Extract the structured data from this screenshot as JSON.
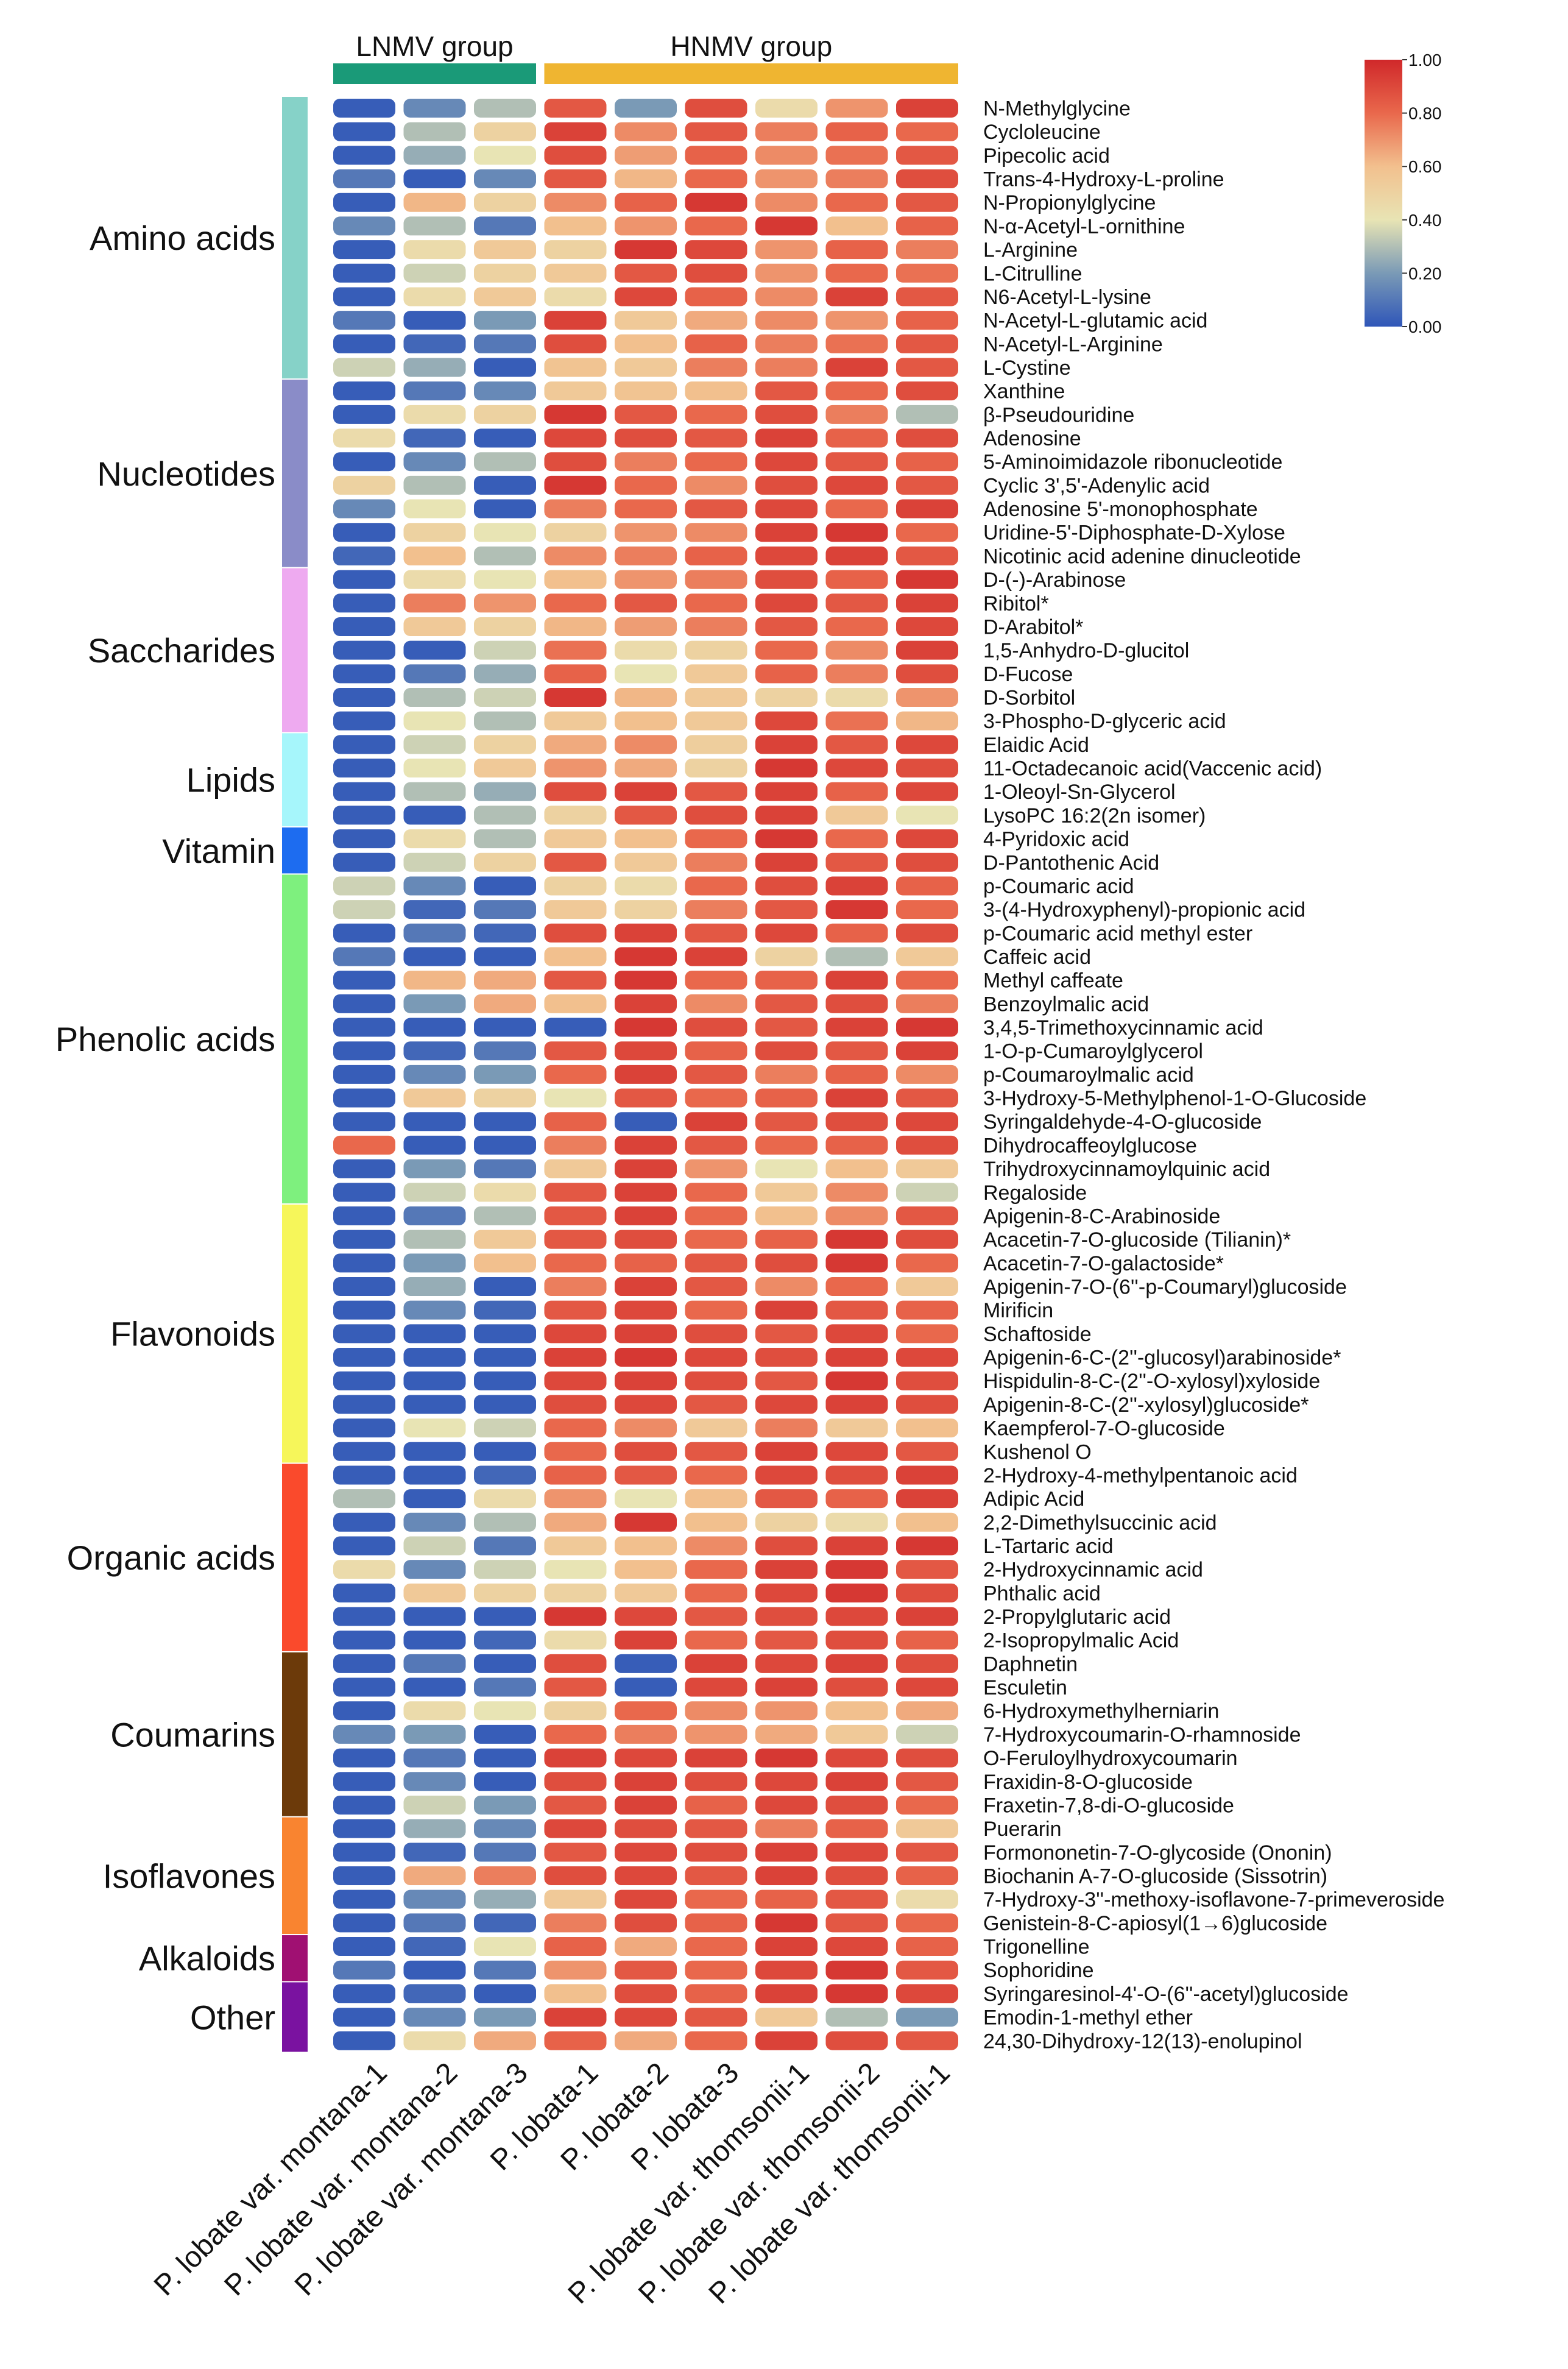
{
  "chart_data": {
    "type": "heatmap",
    "title": "",
    "column_groups": [
      {
        "name": "LNMV group",
        "color": "#1a9a78",
        "columns": 3
      },
      {
        "name": "HNMV group",
        "color": "#efb531",
        "columns": 6
      }
    ],
    "columns": [
      "P. lobate var. montana-1",
      "P. lobate var. montana-2",
      "P. lobate var. montana-3",
      "P. lobata-1",
      "P. lobata-2",
      "P. lobata-3",
      "P. lobate var. thomsonii-1",
      "P. lobate var. thomsonii-2",
      "P. lobate var. thomsonii-1"
    ],
    "row_categories": [
      {
        "name": "Amino acids",
        "color": "#86d2c8",
        "start": 0,
        "count": 12
      },
      {
        "name": "Nucleotides",
        "color": "#8a8cc8",
        "start": 12,
        "count": 8
      },
      {
        "name": "Saccharides",
        "color": "#eeaaf0",
        "start": 20,
        "count": 7
      },
      {
        "name": "Lipids",
        "color": "#a6f6fb",
        "start": 27,
        "count": 4
      },
      {
        "name": "Vitamin",
        "color": "#1d6cf0",
        "start": 31,
        "count": 2
      },
      {
        "name": "Phenolic acids",
        "color": "#7ef07e",
        "start": 33,
        "count": 14
      },
      {
        "name": "Flavonoids",
        "color": "#f6f65a",
        "start": 47,
        "count": 11
      },
      {
        "name": "Organic acids",
        "color": "#fa4a2c",
        "start": 58,
        "count": 8
      },
      {
        "name": "Coumarins",
        "color": "#6c3a0a",
        "start": 66,
        "count": 7
      },
      {
        "name": "Isoflavones",
        "color": "#f98430",
        "start": 73,
        "count": 5
      },
      {
        "name": "Alkaloids",
        "color": "#a01072",
        "start": 78,
        "count": 2
      },
      {
        "name": "Other",
        "color": "#7a12a0",
        "start": 80,
        "count": 3
      }
    ],
    "rows": [
      "N-Methylglycine",
      "Cycloleucine",
      "Pipecolic acid",
      "Trans-4-Hydroxy-L-proline",
      "N-Propionylglycine",
      "N-α-Acetyl-L-ornithine",
      "L-Arginine",
      "L-Citrulline",
      "N6-Acetyl-L-lysine",
      "N-Acetyl-L-glutamic acid",
      "N-Acetyl-L-Arginine",
      "L-Cystine",
      "Xanthine",
      "β-Pseudouridine",
      "Adenosine",
      "5-Aminoimidazole ribonucleotide",
      "Cyclic 3',5'-Adenylic acid",
      "Adenosine 5'-monophosphate",
      "Uridine-5'-Diphosphate-D-Xylose",
      "Nicotinic acid adenine dinucleotide",
      "D-(-)-Arabinose",
      "Ribitol*",
      "D-Arabitol*",
      "1,5-Anhydro-D-glucitol",
      "D-Fucose",
      "D-Sorbitol",
      "3-Phospho-D-glyceric acid",
      "Elaidic Acid",
      "11-Octadecanoic acid(Vaccenic acid)",
      "1-Oleoyl-Sn-Glycerol",
      "LysoPC 16:2(2n isomer)",
      "4-Pyridoxic acid",
      "D-Pantothenic Acid",
      "p-Coumaric acid",
      "3-(4-Hydroxyphenyl)-propionic acid",
      "p-Coumaric acid methyl ester",
      "Caffeic acid",
      "Methyl caffeate",
      "Benzoylmalic acid",
      "3,4,5-Trimethoxycinnamic acid",
      "1-O-p-Cumaroylglycerol",
      "p-Coumaroylmalic acid",
      "3-Hydroxy-5-Methylphenol-1-O-Glucoside",
      "Syringaldehyde-4-O-glucoside",
      "Dihydrocaffeoylglucose",
      "Trihydroxycinnamoylquinic acid",
      "Regaloside",
      "Apigenin-8-C-Arabinoside",
      "Acacetin-7-O-glucoside (Tilianin)*",
      "Acacetin-7-O-galactoside*",
      "Apigenin-7-O-(6''-p-Coumaryl)glucoside",
      "Mirificin",
      "Schaftoside",
      "Apigenin-6-C-(2''-glucosyl)arabinoside*",
      "Hispidulin-8-C-(2''-O-xylosyl)xyloside",
      "Apigenin-8-C-(2''-xylosyl)glucoside*",
      "Kaempferol-7-O-glucoside",
      "Kushenol O",
      "2-Hydroxy-4-methylpentanoic acid",
      "Adipic Acid",
      "2,2-Dimethylsuccinic acid",
      "L-Tartaric acid",
      "2-Hydroxycinnamic acid",
      "Phthalic acid",
      "2-Propylglutaric acid",
      "2-Isopropylmalic Acid",
      "Daphnetin",
      "Esculetin",
      "6-Hydroxymethylherniarin",
      "7-Hydroxycoumarin-O-rhamnoside",
      "O-Feruloylhydroxycoumarin",
      "Fraxidin-8-O-glucoside",
      "Fraxetin-7,8-di-O-glucoside",
      "Puerarin",
      "Formononetin-7-O-glycoside (Ononin)",
      "Biochanin A-7-O-glucoside (Sissotrin)",
      "7-Hydroxy-3''-methoxy-isoflavone-7-primeveroside",
      "Genistein-8-C-apiosyl(1→6)glucoside",
      "Trigonelline",
      "Sophoridine",
      "Syringaresinol-4'-O-(6''-acetyl)glucoside",
      "Emodin-1-methyl ether",
      "24,30-Dihydroxy-12(13)-enolupinol"
    ],
    "values": [
      [
        0.02,
        0.15,
        0.3,
        0.85,
        0.2,
        0.88,
        0.45,
        0.7,
        0.92
      ],
      [
        0.02,
        0.3,
        0.5,
        0.92,
        0.72,
        0.85,
        0.75,
        0.82,
        0.8
      ],
      [
        0.02,
        0.25,
        0.4,
        0.88,
        0.68,
        0.82,
        0.72,
        0.78,
        0.85
      ],
      [
        0.1,
        0.02,
        0.15,
        0.85,
        0.62,
        0.8,
        0.7,
        0.75,
        0.88
      ],
      [
        0.02,
        0.62,
        0.5,
        0.72,
        0.82,
        0.95,
        0.72,
        0.8,
        0.85
      ],
      [
        0.15,
        0.3,
        0.1,
        0.6,
        0.7,
        0.8,
        0.95,
        0.6,
        0.82
      ],
      [
        0.02,
        0.45,
        0.55,
        0.5,
        0.95,
        0.9,
        0.7,
        0.82,
        0.75
      ],
      [
        0.02,
        0.35,
        0.5,
        0.55,
        0.85,
        0.88,
        0.7,
        0.8,
        0.78
      ],
      [
        0.02,
        0.45,
        0.55,
        0.45,
        0.9,
        0.82,
        0.72,
        0.92,
        0.85
      ],
      [
        0.1,
        0.02,
        0.2,
        0.92,
        0.55,
        0.65,
        0.72,
        0.7,
        0.82
      ],
      [
        0.02,
        0.05,
        0.1,
        0.88,
        0.6,
        0.82,
        0.75,
        0.78,
        0.85
      ],
      [
        0.35,
        0.25,
        0.02,
        0.58,
        0.55,
        0.75,
        0.75,
        0.92,
        0.85
      ],
      [
        0.02,
        0.1,
        0.15,
        0.55,
        0.58,
        0.6,
        0.85,
        0.8,
        0.88
      ],
      [
        0.02,
        0.45,
        0.5,
        0.95,
        0.85,
        0.8,
        0.88,
        0.75,
        0.3
      ],
      [
        0.45,
        0.05,
        0.02,
        0.9,
        0.88,
        0.85,
        0.92,
        0.82,
        0.88
      ],
      [
        0.02,
        0.15,
        0.3,
        0.88,
        0.75,
        0.8,
        0.9,
        0.85,
        0.82
      ],
      [
        0.5,
        0.3,
        0.02,
        0.95,
        0.8,
        0.72,
        0.88,
        0.9,
        0.85
      ],
      [
        0.15,
        0.4,
        0.02,
        0.75,
        0.8,
        0.85,
        0.9,
        0.8,
        0.92
      ],
      [
        0.02,
        0.5,
        0.4,
        0.5,
        0.7,
        0.72,
        0.92,
        0.95,
        0.8
      ],
      [
        0.05,
        0.6,
        0.3,
        0.72,
        0.75,
        0.82,
        0.9,
        0.92,
        0.85
      ],
      [
        0.02,
        0.45,
        0.4,
        0.6,
        0.7,
        0.75,
        0.88,
        0.82,
        0.95
      ],
      [
        0.02,
        0.75,
        0.7,
        0.8,
        0.85,
        0.8,
        0.9,
        0.85,
        0.92
      ],
      [
        0.02,
        0.55,
        0.5,
        0.62,
        0.68,
        0.75,
        0.85,
        0.8,
        0.9
      ],
      [
        0.02,
        0.02,
        0.35,
        0.78,
        0.45,
        0.5,
        0.8,
        0.72,
        0.92
      ],
      [
        0.02,
        0.1,
        0.25,
        0.82,
        0.4,
        0.55,
        0.82,
        0.75,
        0.88
      ],
      [
        0.02,
        0.3,
        0.35,
        0.95,
        0.62,
        0.55,
        0.5,
        0.45,
        0.7
      ],
      [
        0.02,
        0.4,
        0.3,
        0.55,
        0.6,
        0.55,
        0.9,
        0.78,
        0.62
      ],
      [
        0.02,
        0.35,
        0.5,
        0.65,
        0.72,
        0.52,
        0.92,
        0.85,
        0.9
      ],
      [
        0.02,
        0.4,
        0.55,
        0.7,
        0.65,
        0.5,
        0.95,
        0.9,
        0.88
      ],
      [
        0.02,
        0.3,
        0.25,
        0.88,
        0.92,
        0.85,
        0.92,
        0.82,
        0.9
      ],
      [
        0.02,
        0.02,
        0.3,
        0.5,
        0.85,
        0.88,
        0.92,
        0.55,
        0.4
      ],
      [
        0.02,
        0.45,
        0.3,
        0.55,
        0.6,
        0.8,
        0.95,
        0.8,
        0.9
      ],
      [
        0.02,
        0.35,
        0.5,
        0.85,
        0.55,
        0.75,
        0.92,
        0.85,
        0.88
      ],
      [
        0.35,
        0.15,
        0.02,
        0.5,
        0.45,
        0.8,
        0.88,
        0.92,
        0.82
      ],
      [
        0.35,
        0.05,
        0.1,
        0.55,
        0.5,
        0.75,
        0.85,
        0.95,
        0.8
      ],
      [
        0.02,
        0.1,
        0.05,
        0.88,
        0.92,
        0.85,
        0.9,
        0.82,
        0.88
      ],
      [
        0.1,
        0.02,
        0.02,
        0.6,
        0.95,
        0.92,
        0.5,
        0.3,
        0.55
      ],
      [
        0.02,
        0.62,
        0.65,
        0.85,
        0.95,
        0.8,
        0.82,
        0.92,
        0.8
      ],
      [
        0.02,
        0.2,
        0.65,
        0.6,
        0.92,
        0.72,
        0.85,
        0.88,
        0.75
      ],
      [
        0.02,
        0.02,
        0.02,
        0.02,
        0.95,
        0.88,
        0.85,
        0.92,
        0.95
      ],
      [
        0.02,
        0.05,
        0.1,
        0.85,
        0.9,
        0.82,
        0.88,
        0.85,
        0.92
      ],
      [
        0.02,
        0.15,
        0.2,
        0.8,
        0.92,
        0.85,
        0.75,
        0.82,
        0.72
      ],
      [
        0.02,
        0.55,
        0.5,
        0.4,
        0.85,
        0.8,
        0.82,
        0.92,
        0.85
      ],
      [
        0.02,
        0.02,
        0.02,
        0.82,
        0.02,
        0.92,
        0.85,
        0.88,
        0.9
      ],
      [
        0.8,
        0.02,
        0.02,
        0.75,
        0.92,
        0.85,
        0.8,
        0.82,
        0.88
      ],
      [
        0.02,
        0.2,
        0.1,
        0.55,
        0.92,
        0.7,
        0.4,
        0.6,
        0.55
      ],
      [
        0.02,
        0.35,
        0.45,
        0.85,
        0.92,
        0.8,
        0.55,
        0.72,
        0.35
      ],
      [
        0.02,
        0.1,
        0.3,
        0.85,
        0.92,
        0.8,
        0.6,
        0.72,
        0.85
      ],
      [
        0.02,
        0.3,
        0.55,
        0.85,
        0.88,
        0.8,
        0.82,
        0.95,
        0.88
      ],
      [
        0.02,
        0.2,
        0.6,
        0.8,
        0.82,
        0.85,
        0.88,
        0.95,
        0.8
      ],
      [
        0.02,
        0.25,
        0.02,
        0.75,
        0.92,
        0.85,
        0.72,
        0.8,
        0.55
      ],
      [
        0.02,
        0.15,
        0.05,
        0.85,
        0.9,
        0.8,
        0.92,
        0.85,
        0.82
      ],
      [
        0.02,
        0.02,
        0.02,
        0.9,
        0.92,
        0.88,
        0.85,
        0.9,
        0.8
      ],
      [
        0.02,
        0.02,
        0.02,
        0.92,
        0.95,
        0.9,
        0.88,
        0.92,
        0.9
      ],
      [
        0.02,
        0.02,
        0.02,
        0.9,
        0.92,
        0.88,
        0.85,
        0.95,
        0.88
      ],
      [
        0.02,
        0.02,
        0.02,
        0.88,
        0.9,
        0.85,
        0.9,
        0.92,
        0.88
      ],
      [
        0.02,
        0.4,
        0.35,
        0.8,
        0.72,
        0.55,
        0.75,
        0.55,
        0.6
      ],
      [
        0.02,
        0.02,
        0.02,
        0.8,
        0.88,
        0.85,
        0.92,
        0.9,
        0.85
      ],
      [
        0.02,
        0.02,
        0.05,
        0.82,
        0.85,
        0.8,
        0.9,
        0.88,
        0.92
      ],
      [
        0.3,
        0.02,
        0.45,
        0.7,
        0.4,
        0.6,
        0.85,
        0.82,
        0.92
      ],
      [
        0.02,
        0.15,
        0.3,
        0.65,
        0.95,
        0.6,
        0.5,
        0.45,
        0.6
      ],
      [
        0.02,
        0.35,
        0.1,
        0.55,
        0.6,
        0.72,
        0.88,
        0.92,
        0.95
      ],
      [
        0.45,
        0.15,
        0.35,
        0.4,
        0.6,
        0.8,
        0.92,
        0.95,
        0.85
      ],
      [
        0.02,
        0.55,
        0.5,
        0.5,
        0.55,
        0.8,
        0.9,
        0.95,
        0.88
      ],
      [
        0.02,
        0.02,
        0.02,
        0.95,
        0.9,
        0.85,
        0.88,
        0.9,
        0.92
      ],
      [
        0.02,
        0.02,
        0.05,
        0.45,
        0.92,
        0.8,
        0.85,
        0.88,
        0.82
      ],
      [
        0.02,
        0.1,
        0.02,
        0.88,
        0.02,
        0.92,
        0.9,
        0.92,
        0.88
      ],
      [
        0.02,
        0.02,
        0.1,
        0.85,
        0.02,
        0.9,
        0.92,
        0.88,
        0.9
      ],
      [
        0.02,
        0.45,
        0.4,
        0.5,
        0.8,
        0.72,
        0.7,
        0.6,
        0.65
      ],
      [
        0.15,
        0.2,
        0.02,
        0.8,
        0.75,
        0.7,
        0.65,
        0.55,
        0.35
      ],
      [
        0.02,
        0.1,
        0.02,
        0.92,
        0.9,
        0.92,
        0.95,
        0.9,
        0.88
      ],
      [
        0.02,
        0.15,
        0.02,
        0.88,
        0.92,
        0.88,
        0.9,
        0.92,
        0.85
      ],
      [
        0.02,
        0.35,
        0.2,
        0.85,
        0.92,
        0.82,
        0.9,
        0.88,
        0.8
      ],
      [
        0.02,
        0.25,
        0.15,
        0.9,
        0.88,
        0.85,
        0.75,
        0.82,
        0.55
      ],
      [
        0.02,
        0.05,
        0.1,
        0.85,
        0.9,
        0.88,
        0.92,
        0.9,
        0.85
      ],
      [
        0.02,
        0.65,
        0.75,
        0.88,
        0.9,
        0.85,
        0.92,
        0.88,
        0.82
      ],
      [
        0.02,
        0.15,
        0.25,
        0.55,
        0.9,
        0.8,
        0.82,
        0.85,
        0.45
      ],
      [
        0.02,
        0.1,
        0.05,
        0.75,
        0.88,
        0.82,
        0.95,
        0.85,
        0.8
      ],
      [
        0.02,
        0.05,
        0.4,
        0.82,
        0.65,
        0.8,
        0.92,
        0.9,
        0.82
      ],
      [
        0.1,
        0.02,
        0.1,
        0.7,
        0.85,
        0.8,
        0.9,
        0.95,
        0.85
      ],
      [
        0.02,
        0.05,
        0.02,
        0.6,
        0.88,
        0.82,
        0.92,
        0.95,
        0.9
      ],
      [
        0.02,
        0.15,
        0.2,
        0.92,
        0.9,
        0.85,
        0.55,
        0.3,
        0.2
      ],
      [
        0.02,
        0.45,
        0.65,
        0.82,
        0.65,
        0.8,
        0.92,
        0.88,
        0.85
      ]
    ],
    "colorbar": {
      "min": 0,
      "max": 1,
      "ticks": [
        "0.00",
        "0.20",
        "0.40",
        "0.60",
        "0.80",
        "1.00"
      ],
      "colors": [
        "#2f56b8",
        "#7a9ab6",
        "#e8e4b4",
        "#f2c08e",
        "#e9684c",
        "#d0282a"
      ]
    }
  }
}
